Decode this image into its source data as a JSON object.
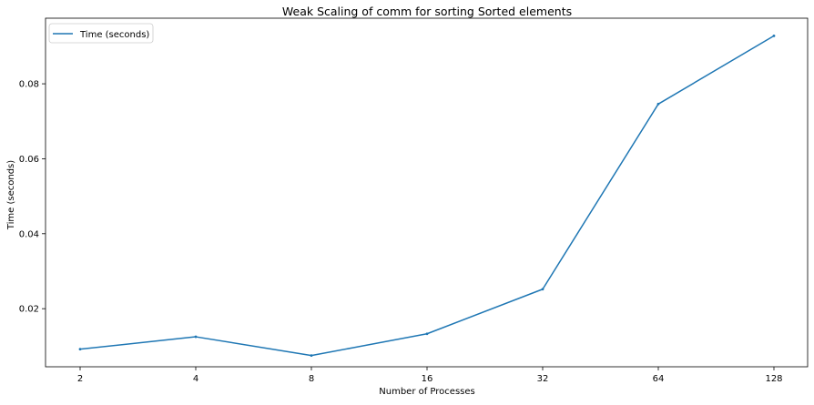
{
  "chart_data": {
    "type": "line",
    "title": "Weak Scaling of comm for sorting Sorted elements",
    "xlabel": "Number of Processes",
    "ylabel": "Time (seconds)",
    "x_scale": "categorical",
    "categories": [
      "2",
      "4",
      "8",
      "16",
      "32",
      "64",
      "128"
    ],
    "series": [
      {
        "name": "Time (seconds)",
        "color": "#1f77b4",
        "values": [
          0.0092,
          0.0125,
          0.0075,
          0.0133,
          0.0252,
          0.0746,
          0.0928
        ]
      }
    ],
    "yticks": [
      0.02,
      0.04,
      0.06,
      0.08
    ],
    "ytick_labels": [
      "0.02",
      "0.04",
      "0.06",
      "0.08"
    ],
    "ylim": [
      0.0045,
      0.0975
    ],
    "grid": false,
    "legend_position": "top-left"
  }
}
